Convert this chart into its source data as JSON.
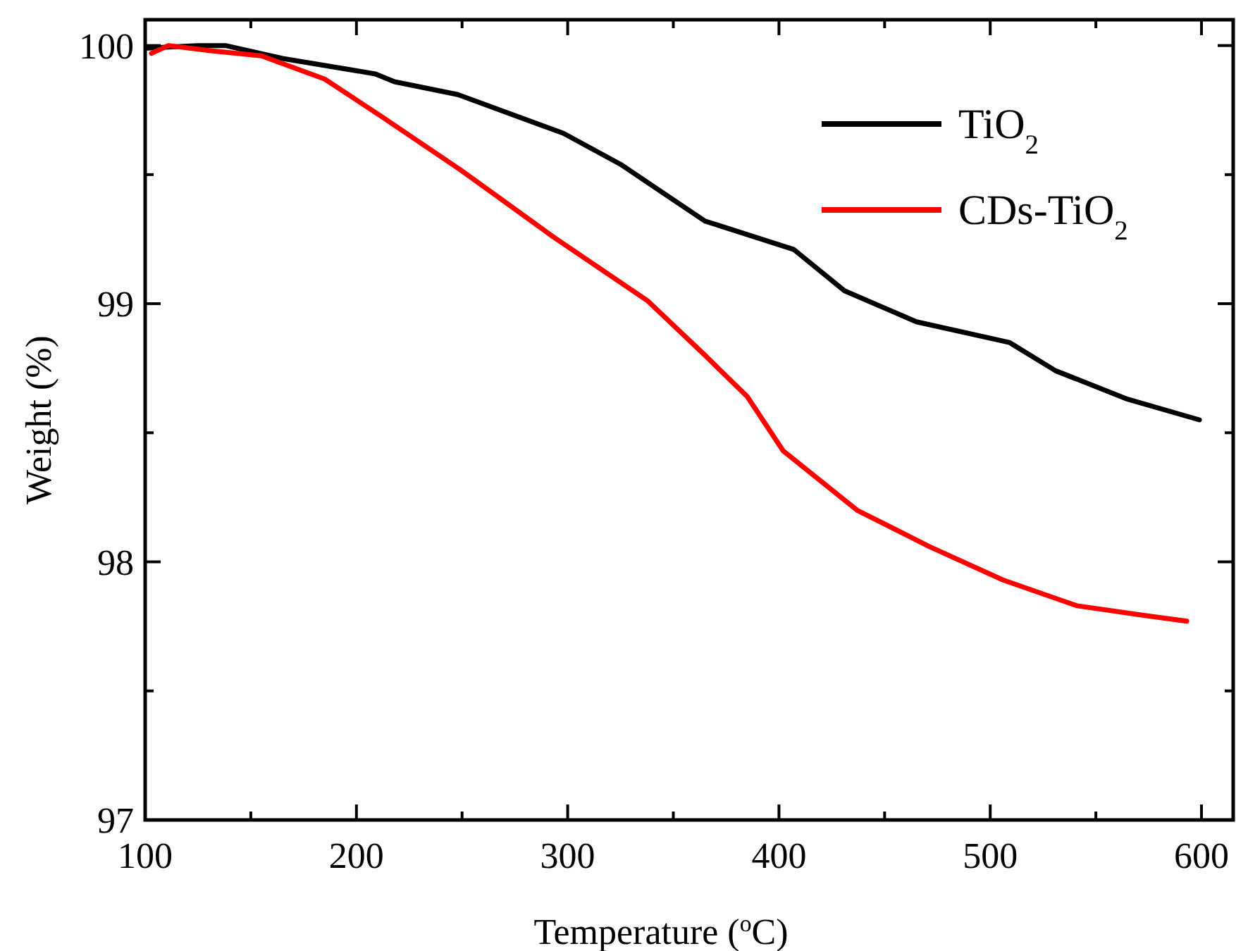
{
  "chart_data": {
    "type": "line",
    "xlabel": "Temperature ($^{o}$C)",
    "ylabel": "Weight (%)",
    "xlim": [
      100,
      615
    ],
    "xticks": [
      100,
      {
        "value": 150,
        "label": null
      },
      200,
      {
        "value": 250,
        "label": null
      },
      300,
      {
        "value": 350,
        "label": null
      },
      400,
      {
        "value": 450,
        "label": null
      },
      500,
      {
        "value": 550,
        "label": null
      },
      600
    ],
    "ylim": [
      97,
      100.1
    ],
    "yticks": [
      97,
      {
        "value": 97.5,
        "label": null
      },
      98,
      {
        "value": 98.5,
        "label": null
      },
      99,
      {
        "value": 99.5,
        "label": null
      },
      100
    ],
    "grid": false,
    "legend": "top right",
    "line_style": "solid",
    "marker": "none",
    "series": [
      {
        "name": "TiO$_{2}$",
        "color": "#000000",
        "x": [
          101,
          125,
          138,
          165,
          209,
          218,
          248,
          298,
          325,
          365,
          407,
          431,
          465,
          509,
          531,
          565,
          599
        ],
        "values": [
          99.99,
          100.0,
          100.0,
          99.95,
          99.89,
          99.86,
          99.81,
          99.66,
          99.54,
          99.32,
          99.21,
          99.05,
          98.93,
          98.85,
          98.74,
          98.63,
          98.55
        ]
      },
      {
        "name": "CDs-TiO$_{2}$",
        "color": "#ff0000",
        "x": [
          103,
          111,
          131,
          155,
          165,
          185,
          211,
          249,
          293,
          338,
          365,
          385,
          402,
          437,
          471,
          506,
          541,
          575,
          593
        ],
        "values": [
          99.97,
          100.0,
          99.98,
          99.96,
          99.93,
          99.87,
          99.73,
          99.52,
          99.26,
          99.01,
          98.8,
          98.64,
          98.43,
          98.2,
          98.06,
          97.93,
          97.83,
          97.79,
          97.77
        ]
      }
    ]
  }
}
